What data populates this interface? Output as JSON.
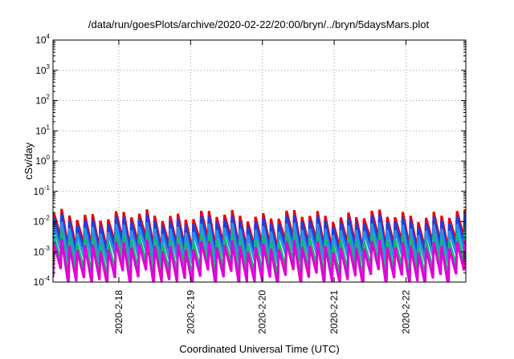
{
  "chart_data": {
    "type": "line",
    "title": "/data/run/goesPlots/archive/2020-02-22/20:00/bryn/../bryn/5daysMars.plot",
    "xlabel": "Coordinated Universal Time (UTC)",
    "ylabel": "cSv/day",
    "yscale": "log",
    "ylim": [
      0.0001,
      10000
    ],
    "y_ticks": [
      {
        "base": "10",
        "exp": "4"
      },
      {
        "base": "10",
        "exp": "3"
      },
      {
        "base": "10",
        "exp": "2"
      },
      {
        "base": "10",
        "exp": "1"
      },
      {
        "base": "10",
        "exp": "0"
      },
      {
        "base": "10",
        "exp": "-1"
      },
      {
        "base": "10",
        "exp": "-2"
      },
      {
        "base": "10",
        "exp": "-3"
      },
      {
        "base": "10",
        "exp": "-4"
      }
    ],
    "x_range_days": [
      "2020-02-17 02:00",
      "2020-02-22 20:00"
    ],
    "x_ticks": [
      "2020-2-18",
      "2020-2-19",
      "2020-2-20",
      "2020-2-21",
      "2020-2-22"
    ],
    "grid": true,
    "pattern": "sawtooth, ~2.6 h period; rises sharply then decays",
    "series": [
      {
        "color": "#e8000b",
        "peak": 0.016,
        "trough": 0.0016
      },
      {
        "color": "#1f3fe0",
        "peak": 0.011,
        "trough": 0.0011
      },
      {
        "color": "#2a90e8",
        "peak": 0.006,
        "trough": 0.0006
      },
      {
        "color": "#14b86e",
        "peak": 0.0028,
        "trough": 0.00022
      },
      {
        "color": "#e000d8",
        "peak": 0.0016,
        "trough": 0.00012
      }
    ]
  }
}
